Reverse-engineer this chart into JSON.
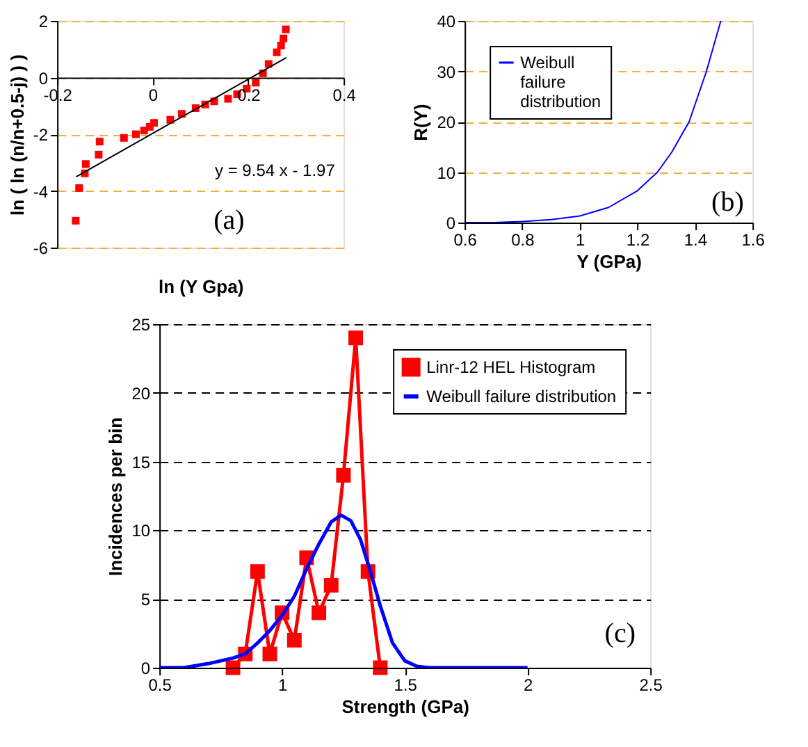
{
  "chart_data": [
    {
      "type": "scatter",
      "xlabel": "ln (Y Gpa)",
      "ylabel": "ln ( ln (n/n+0.5-j) ) )",
      "xlim": [
        -0.2,
        0.4
      ],
      "ylim": [
        -6,
        2
      ],
      "xticks": [
        -0.2,
        0,
        0.2,
        0.4
      ],
      "yticks": [
        -6,
        -4,
        -2,
        0,
        2
      ],
      "grid": "y",
      "legend": false,
      "annotations": [
        "y = 9.54 x - 1.97",
        "(a)"
      ],
      "series": [
        {
          "marker": "square",
          "color": "#ff0000",
          "x": [
            -0.161,
            -0.154,
            -0.142,
            -0.14,
            -0.113,
            -0.111,
            -0.06,
            -0.035,
            -0.018,
            -0.006,
            0.003,
            0.037,
            0.061,
            0.09,
            0.11,
            0.129,
            0.158,
            0.177,
            0.197,
            0.216,
            0.231,
            0.243,
            0.26,
            0.269,
            0.274,
            0.279
          ],
          "values": [
            -5.05,
            -3.9,
            -3.38,
            -3.05,
            -2.72,
            -2.26,
            -2.13,
            -2.0,
            -1.87,
            -1.74,
            -1.6,
            -1.49,
            -1.28,
            -1.08,
            -0.95,
            -0.84,
            -0.75,
            -0.59,
            -0.39,
            -0.18,
            0.15,
            0.48,
            0.89,
            1.13,
            1.38,
            1.7
          ]
        },
        {
          "type": "line",
          "marker": "none",
          "color": "#000000",
          "x": [
            -0.16,
            0.28
          ],
          "values": [
            -3.5,
            0.7
          ]
        }
      ]
    },
    {
      "type": "line",
      "xlabel": "Y (GPa)",
      "ylabel": "R(Y)",
      "xlim": [
        0.6,
        1.6
      ],
      "ylim": [
        0,
        40
      ],
      "xticks": [
        0.6,
        0.8,
        1,
        1.2,
        1.4,
        1.6
      ],
      "yticks": [
        0,
        10,
        20,
        30,
        40
      ],
      "grid": "y",
      "legend": "top left",
      "annotations": [
        "(b)"
      ],
      "series": [
        {
          "name": "Weibull failure distribution",
          "marker": "none",
          "color": "#0000ff",
          "x": [
            0.6,
            0.7,
            0.8,
            0.9,
            1.0,
            1.1,
            1.2,
            1.27,
            1.32,
            1.38,
            1.44,
            1.49
          ],
          "values": [
            0,
            0,
            0.2,
            0.6,
            1.3,
            3,
            6.3,
            10,
            14,
            20,
            30,
            40
          ]
        }
      ]
    },
    {
      "type": "line",
      "xlabel": "Strength (GPa)",
      "ylabel": "Incidences per bin",
      "xlim": [
        0.5,
        2.5
      ],
      "ylim": [
        0,
        25
      ],
      "xticks": [
        0.5,
        1,
        1.5,
        2,
        2.5
      ],
      "yticks": [
        0,
        5,
        10,
        15,
        20,
        25
      ],
      "grid": "y",
      "legend": "top right",
      "annotations": [
        "(c)"
      ],
      "series": [
        {
          "name": "Linr-12 HEL Histogram",
          "marker": "square",
          "color": "#ff0000",
          "x": [
            0.8,
            0.85,
            0.9,
            0.95,
            1.0,
            1.05,
            1.1,
            1.15,
            1.2,
            1.25,
            1.3,
            1.35,
            1.4
          ],
          "values": [
            0,
            1,
            7,
            1,
            4,
            2,
            8,
            4,
            6,
            14,
            24,
            7,
            0
          ]
        },
        {
          "name": "Weibull failure distribution",
          "marker": "none",
          "color": "#0000ff",
          "x": [
            0.5,
            0.6,
            0.7,
            0.8,
            0.85,
            0.9,
            0.95,
            1.0,
            1.05,
            1.1,
            1.15,
            1.2,
            1.24,
            1.28,
            1.32,
            1.36,
            1.4,
            1.45,
            1.5,
            1.55,
            1.6,
            2.0
          ],
          "values": [
            0,
            0,
            0.3,
            0.7,
            1,
            1.8,
            2.7,
            3.8,
            5.2,
            7.2,
            9,
            10.6,
            11.1,
            10.7,
            9.3,
            7,
            4.5,
            1.8,
            0.5,
            0.1,
            0,
            0
          ]
        }
      ]
    }
  ]
}
